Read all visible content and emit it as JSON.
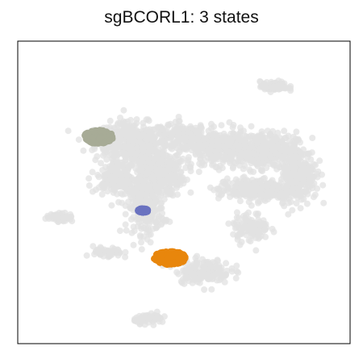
{
  "chart_data": {
    "type": "scatter",
    "title": "sgBCORL1: 3 states",
    "xlabel": "",
    "ylabel": "",
    "grid": false,
    "legend": "none",
    "background_color": "#e1e1e1",
    "series": [
      {
        "color": "#a7ab96",
        "center": [
          -1.5,
          5.5
        ],
        "spread": [
          3.2,
          1.4
        ]
      },
      {
        "color": "#6a72c0",
        "center": [
          3.2,
          -1.8
        ],
        "spread": [
          1.1,
          0.4
        ]
      },
      {
        "color": "#e8860c",
        "center": [
          6.0,
          -6.5
        ],
        "spread": [
          3.5,
          1.4
        ]
      }
    ]
  }
}
